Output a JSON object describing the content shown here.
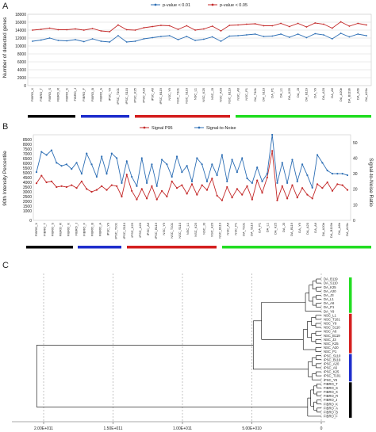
{
  "panels": {
    "a": "A",
    "b": "B",
    "c": "C"
  },
  "samples": [
    "FIBRO_X",
    "FIBRO_T",
    "FIBRO_S",
    "FIBRO_R",
    "FIBRO_K",
    "FIBRO_J",
    "FIBRO_F",
    "FIBRO_B",
    "FIBRO_A",
    "iPSC_Y9",
    "iPSC_T101",
    "iPSC_S110",
    "iPSC_K25",
    "iPSC_A20",
    "iPSC_A6",
    "iPSC_B119",
    "NSC_Y9",
    "NSC_T101",
    "NSC_S110",
    "NSC_L1",
    "NSC_K25",
    "NSC_J3",
    "NSC_A20",
    "NSC_B119",
    "NSC_A6",
    "NSC_P1",
    "DA_T101",
    "DA_S110",
    "DA_P1",
    "DA_L1",
    "DA_K25",
    "DA_J3",
    "DA_B119",
    "DA_Y9",
    "DA_A20",
    "DA_A6",
    "DA_A20b",
    "DA_B119b",
    "DA_A6b",
    "DA_A20c"
  ],
  "groups": [
    {
      "name": "FIBRO",
      "color": "#000000",
      "count": 9
    },
    {
      "name": "iPSC",
      "color": "#1f2ecc",
      "count": 7
    },
    {
      "name": "NSC",
      "color": "#d42020",
      "count": 10
    },
    {
      "name": "DA",
      "color": "#22dd22",
      "count": 14
    }
  ],
  "chart_data": [
    {
      "type": "line",
      "panel": "A",
      "ylabel": "Number of detected genes",
      "ylim": [
        0,
        18000
      ],
      "yticks": [
        "0",
        "2000",
        "4000",
        "6000",
        "8000",
        "10000",
        "12000",
        "14000",
        "16000",
        "18000"
      ],
      "grid": true,
      "legend": "top-center",
      "series": [
        {
          "name": "p-value < 0.01",
          "color": "#2e6fb5",
          "values": [
            11200,
            11500,
            12000,
            11400,
            11300,
            11600,
            11100,
            11800,
            11200,
            11000,
            12600,
            11000,
            11200,
            11800,
            12100,
            12400,
            12600,
            11600,
            12400,
            11400,
            11700,
            12300,
            11200,
            12500,
            12600,
            12800,
            13000,
            12400,
            12500,
            13000,
            12200,
            13000,
            12100,
            13100,
            12800,
            11800,
            13200,
            12300,
            13000,
            12600
          ]
        },
        {
          "name": "p-value < 0.05",
          "color": "#c42b2b",
          "values": [
            14000,
            14200,
            14500,
            14100,
            14100,
            14300,
            14000,
            14400,
            13800,
            13600,
            15300,
            14100,
            14000,
            14600,
            14900,
            15200,
            15100,
            14200,
            15100,
            14000,
            14300,
            15000,
            13800,
            15200,
            15300,
            15500,
            15600,
            15100,
            15100,
            15700,
            14900,
            15700,
            14800,
            15800,
            15500,
            14500,
            16100,
            15000,
            15700,
            15300
          ]
        }
      ]
    },
    {
      "type": "line",
      "panel": "B",
      "ylabel": "90th Intensity Percentile",
      "y2label": "Signal-to-Noise Ratio",
      "ylim": [
        0,
        9000
      ],
      "yticks": [
        "0",
        "1000",
        "1500",
        "2000",
        "2500",
        "3000",
        "3500",
        "4000",
        "4500",
        "5000",
        "5500",
        "6000",
        "6500",
        "7000",
        "7500",
        "8000",
        "8500"
      ],
      "y2lim": [
        0,
        55
      ],
      "y2ticks": [
        "0",
        "10",
        "20",
        "30",
        "40",
        "50"
      ],
      "legend": "top-center",
      "series": [
        {
          "name": "Signal P95",
          "color": "#c42b2b",
          "axis": "left",
          "values": [
            3900,
            4700,
            4000,
            4100,
            3500,
            3600,
            3500,
            3700,
            3400,
            4100,
            3300,
            3000,
            3200,
            3600,
            3200,
            3700,
            3600,
            2500,
            4800,
            3100,
            2200,
            3300,
            2300,
            3600,
            2200,
            3100,
            2500,
            4100,
            3400,
            3700,
            2800,
            3800,
            2700,
            3700,
            3200,
            4400,
            2600,
            2100,
            3500,
            2400,
            3300,
            2700,
            3600,
            2200,
            4200,
            2900,
            4500,
            7300,
            2100,
            3600,
            2300,
            3700,
            2400,
            3400,
            2700,
            2300,
            3800,
            3400,
            4000,
            3100,
            3800,
            3700,
            3200
          ]
        },
        {
          "name": "Signal-to-Noise",
          "color": "#2e6fb5",
          "axis": "right",
          "values": [
            31,
            44,
            42,
            45,
            37,
            35,
            36,
            33,
            37,
            30,
            43,
            36,
            28,
            41,
            30,
            43,
            40,
            24,
            38,
            28,
            22,
            40,
            24,
            36,
            22,
            39,
            36,
            28,
            41,
            31,
            35,
            25,
            40,
            36,
            25,
            36,
            29,
            42,
            25,
            39,
            31,
            40,
            27,
            24,
            34,
            25,
            30,
            55,
            24,
            37,
            24,
            39,
            25,
            36,
            29,
            21,
            42,
            37,
            32,
            30,
            30,
            30,
            29
          ]
        }
      ]
    },
    {
      "type": "dendrogram",
      "panel": "C",
      "xticks": [
        "2.00E+011",
        "1.50E+011",
        "1.00E+011",
        "5.00E+010",
        "0"
      ],
      "leaves": [
        "DA_B119",
        "DA_S110",
        "DA_K25",
        "DA_A20",
        "DA_J3",
        "DA_L1",
        "DA_A6",
        "DA_P1",
        "DA_Y9",
        "NSC_L1",
        "NSC_T101",
        "NSC_Y9",
        "NSC_S110",
        "NSC_A6",
        "NSC_B119",
        "NSC_J3",
        "NSC_K25",
        "NSC_A20",
        "NSC_P1",
        "iPSC_S110",
        "iPSC_B119",
        "iPSC_A20",
        "iPSC_A6",
        "iPSC_K25",
        "iPSC_T101",
        "iPSC_Y9",
        "FIBRO_T",
        "FIBRO_S",
        "FIBRO_X",
        "FIBRO_R",
        "FIBRO_J",
        "FIBRO_K",
        "FIBRO_A",
        "FIBRO_B",
        "FIBRO_F"
      ]
    }
  ]
}
